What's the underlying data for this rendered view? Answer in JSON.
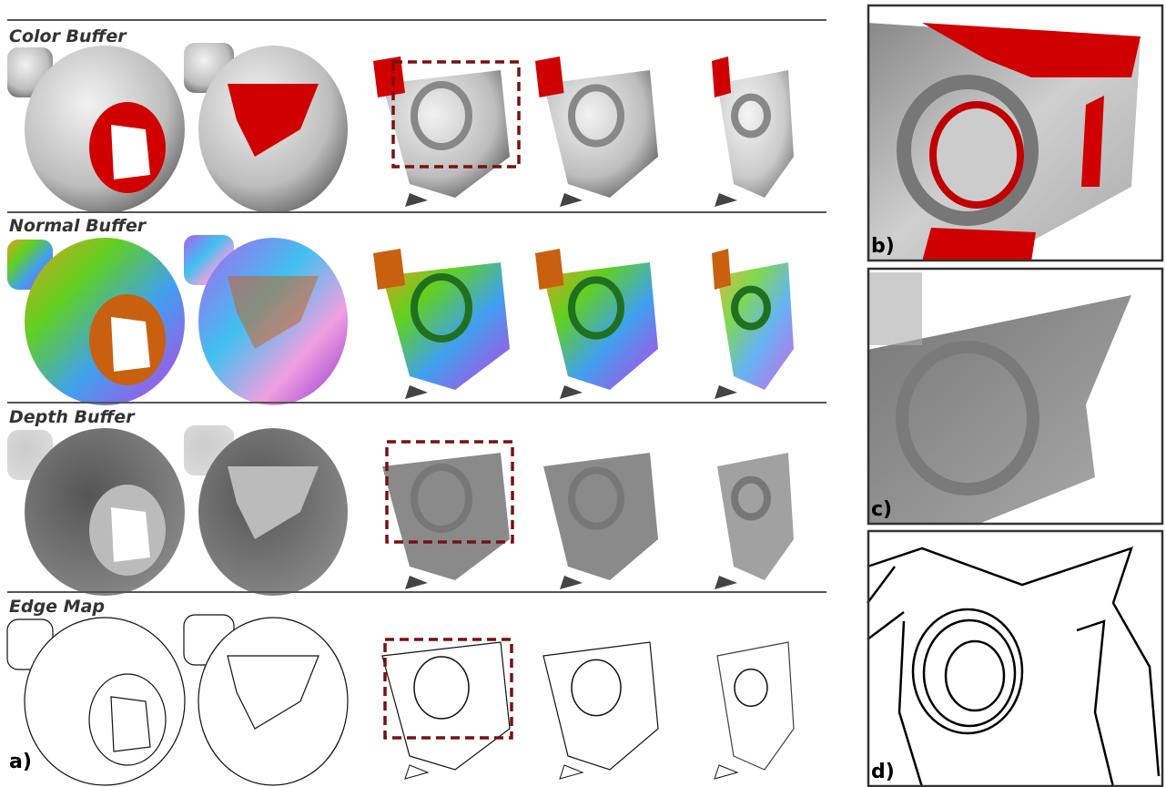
{
  "panel_a": {
    "label": "a)",
    "rows": [
      {
        "title": "Color Buffer"
      },
      {
        "title": "Normal Buffer"
      },
      {
        "title": "Depth Buffer"
      },
      {
        "title": "Edge Map"
      }
    ]
  },
  "insets": [
    {
      "label": "b)"
    },
    {
      "label": "c)"
    },
    {
      "label": "d)"
    }
  ]
}
